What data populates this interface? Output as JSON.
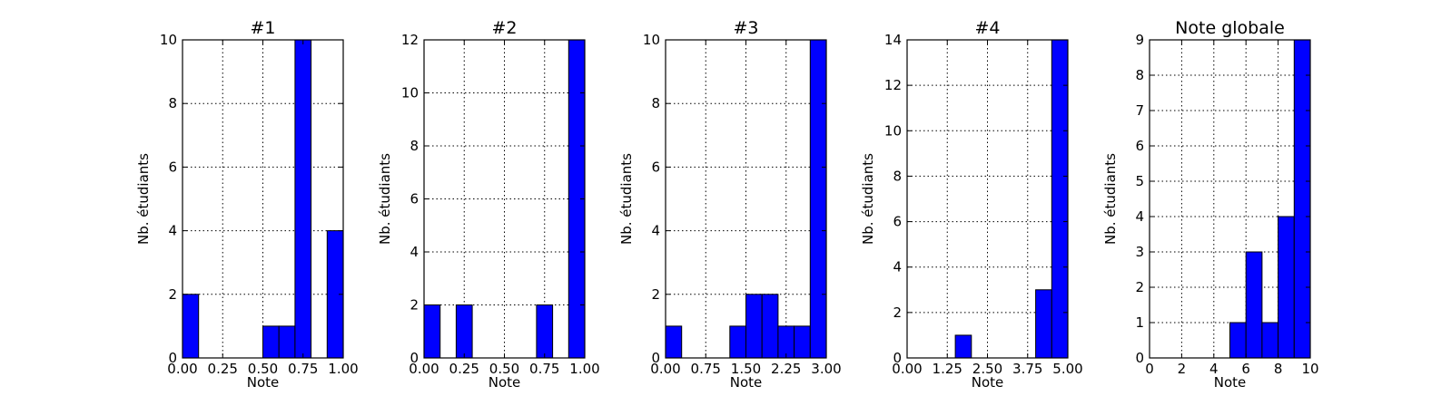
{
  "colors": {
    "bar": "#0000ff",
    "background": "#ffffff",
    "axes": "#000000"
  },
  "chart_data": [
    {
      "type": "bar",
      "title": "#1",
      "xlabel": "Note",
      "ylabel": "Nb. étudiants",
      "xlim": [
        0,
        1
      ],
      "ylim": [
        0,
        10
      ],
      "xticks": [
        "0.00",
        "0.25",
        "0.50",
        "0.75",
        "1.00"
      ],
      "yticks": [
        "0",
        "2",
        "4",
        "6",
        "8",
        "10"
      ],
      "bins": [
        {
          "x0": 0.0,
          "x1": 0.1,
          "count": 2
        },
        {
          "x0": 0.5,
          "x1": 0.6,
          "count": 1
        },
        {
          "x0": 0.6,
          "x1": 0.7,
          "count": 1
        },
        {
          "x0": 0.7,
          "x1": 0.8,
          "count": 10
        },
        {
          "x0": 0.9,
          "x1": 1.0,
          "count": 4
        }
      ],
      "grid": true
    },
    {
      "type": "bar",
      "title": "#2",
      "xlabel": "Note",
      "ylabel": "Nb. étudiants",
      "xlim": [
        0,
        1
      ],
      "ylim": [
        0,
        12
      ],
      "xticks": [
        "0.00",
        "0.25",
        "0.50",
        "0.75",
        "1.00"
      ],
      "yticks": [
        "0",
        "2",
        "4",
        "6",
        "8",
        "10",
        "12"
      ],
      "bins": [
        {
          "x0": 0.0,
          "x1": 0.1,
          "count": 2
        },
        {
          "x0": 0.2,
          "x1": 0.3,
          "count": 2
        },
        {
          "x0": 0.7,
          "x1": 0.8,
          "count": 2
        },
        {
          "x0": 0.9,
          "x1": 1.0,
          "count": 12
        }
      ],
      "grid": true
    },
    {
      "type": "bar",
      "title": "#3",
      "xlabel": "Note",
      "ylabel": "Nb. étudiants",
      "xlim": [
        0,
        3
      ],
      "ylim": [
        0,
        10
      ],
      "xticks": [
        "0.00",
        "0.75",
        "1.50",
        "2.25",
        "3.00"
      ],
      "yticks": [
        "0",
        "2",
        "4",
        "6",
        "8",
        "10"
      ],
      "bins": [
        {
          "x0": 0.0,
          "x1": 0.3,
          "count": 1
        },
        {
          "x0": 1.2,
          "x1": 1.5,
          "count": 1
        },
        {
          "x0": 1.5,
          "x1": 1.8,
          "count": 2
        },
        {
          "x0": 1.8,
          "x1": 2.1,
          "count": 2
        },
        {
          "x0": 2.1,
          "x1": 2.4,
          "count": 1
        },
        {
          "x0": 2.4,
          "x1": 2.7,
          "count": 1
        },
        {
          "x0": 2.7,
          "x1": 3.0,
          "count": 10
        }
      ],
      "grid": true
    },
    {
      "type": "bar",
      "title": "#4",
      "xlabel": "Note",
      "ylabel": "Nb. étudiants",
      "xlim": [
        0,
        5
      ],
      "ylim": [
        0,
        14
      ],
      "xticks": [
        "0.00",
        "1.25",
        "2.50",
        "3.75",
        "5.00"
      ],
      "yticks": [
        "0",
        "2",
        "4",
        "6",
        "8",
        "10",
        "12",
        "14"
      ],
      "bins": [
        {
          "x0": 1.5,
          "x1": 2.0,
          "count": 1
        },
        {
          "x0": 4.0,
          "x1": 4.5,
          "count": 3
        },
        {
          "x0": 4.5,
          "x1": 5.0,
          "count": 14
        }
      ],
      "grid": true
    },
    {
      "type": "bar",
      "title": "Note globale",
      "xlabel": "Note",
      "ylabel": "Nb. étudiants",
      "xlim": [
        0,
        10
      ],
      "ylim": [
        0,
        9
      ],
      "xticks": [
        "0",
        "2",
        "4",
        "6",
        "8",
        "10"
      ],
      "yticks": [
        "0",
        "1",
        "2",
        "3",
        "4",
        "5",
        "6",
        "7",
        "8",
        "9"
      ],
      "bins": [
        {
          "x0": 5.0,
          "x1": 6.0,
          "count": 1
        },
        {
          "x0": 6.0,
          "x1": 7.0,
          "count": 3
        },
        {
          "x0": 7.0,
          "x1": 8.0,
          "count": 1
        },
        {
          "x0": 8.0,
          "x1": 9.0,
          "count": 4
        },
        {
          "x0": 9.0,
          "x1": 10.0,
          "count": 9
        }
      ],
      "grid": true
    }
  ]
}
